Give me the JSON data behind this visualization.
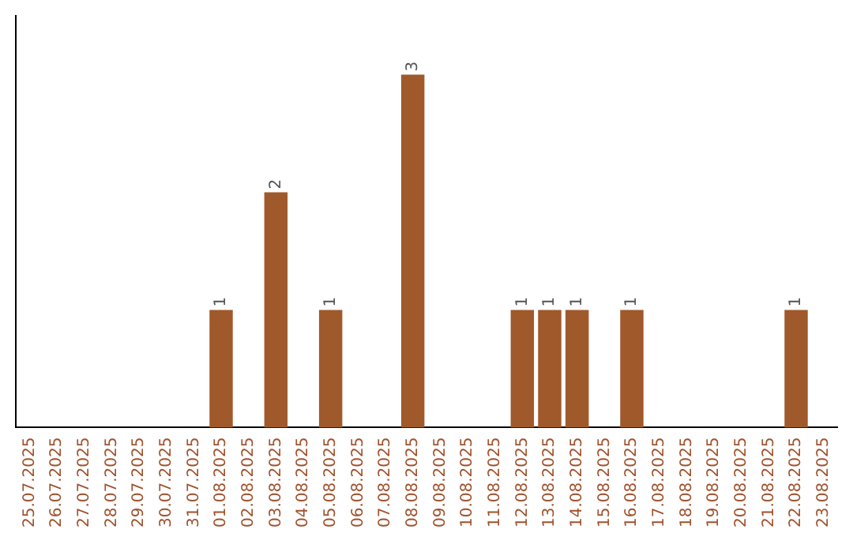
{
  "chart_data": {
    "type": "bar",
    "categories": [
      "25.07.2025",
      "26.07.2025",
      "27.07.2025",
      "28.07.2025",
      "29.07.2025",
      "30.07.2025",
      "31.07.2025",
      "01.08.2025",
      "02.08.2025",
      "03.08.2025",
      "04.08.2025",
      "05.08.2025",
      "06.08.2025",
      "07.08.2025",
      "08.08.2025",
      "09.08.2025",
      "10.08.2025",
      "11.08.2025",
      "12.08.2025",
      "13.08.2025",
      "14.08.2025",
      "15.08.2025",
      "16.08.2025",
      "17.08.2025",
      "18.08.2025",
      "19.08.2025",
      "20.08.2025",
      "21.08.2025",
      "22.08.2025",
      "23.08.2025"
    ],
    "values": [
      0,
      0,
      0,
      0,
      0,
      0,
      0,
      1,
      0,
      2,
      0,
      1,
      0,
      0,
      3,
      0,
      0,
      0,
      1,
      1,
      1,
      0,
      1,
      0,
      0,
      0,
      0,
      0,
      1,
      0
    ],
    "value_labels": [
      null,
      null,
      null,
      null,
      null,
      null,
      null,
      "1",
      null,
      "2",
      null,
      "1",
      null,
      null,
      "3",
      null,
      null,
      null,
      "1",
      "1",
      "1",
      null,
      "1",
      null,
      null,
      null,
      null,
      null,
      "1",
      null
    ],
    "color": "#a0592a",
    "grid": false,
    "legend": false,
    "tick_labels": "x"
  }
}
